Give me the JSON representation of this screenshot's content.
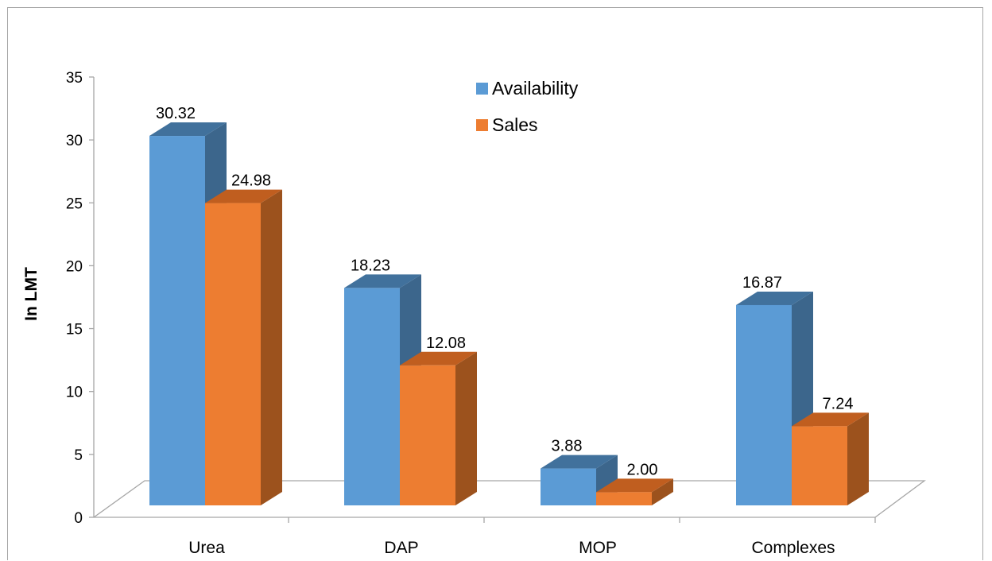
{
  "chart_data": {
    "type": "bar",
    "categories": [
      "Urea",
      "DAP",
      "MOP",
      "Complexes"
    ],
    "series": [
      {
        "name": "Availability",
        "values": [
          30.32,
          18.23,
          3.88,
          16.87
        ],
        "labels": [
          "30.32",
          "18.23",
          "3.88",
          "16.87"
        ]
      },
      {
        "name": "Sales",
        "values": [
          24.98,
          12.08,
          2.0,
          7.24
        ],
        "labels": [
          "24.98",
          "12.08",
          "2.00",
          "7.24"
        ]
      }
    ],
    "xlabel": "",
    "ylabel": "In LMT",
    "ylim": [
      0,
      35
    ],
    "yticks": [
      "0",
      "5",
      "10",
      "15",
      "20",
      "25",
      "30",
      "35"
    ],
    "legend_position": "top-center",
    "grid": false,
    "style": "3d-clustered-column",
    "colors": {
      "Availability": {
        "front": "#5b9bd5",
        "side": "#3c668c",
        "top": "#41719c"
      },
      "Sales": {
        "front": "#ed7d31",
        "side": "#9c521d",
        "top": "#c05e1f"
      },
      "axis": "#a6a6a6"
    }
  }
}
